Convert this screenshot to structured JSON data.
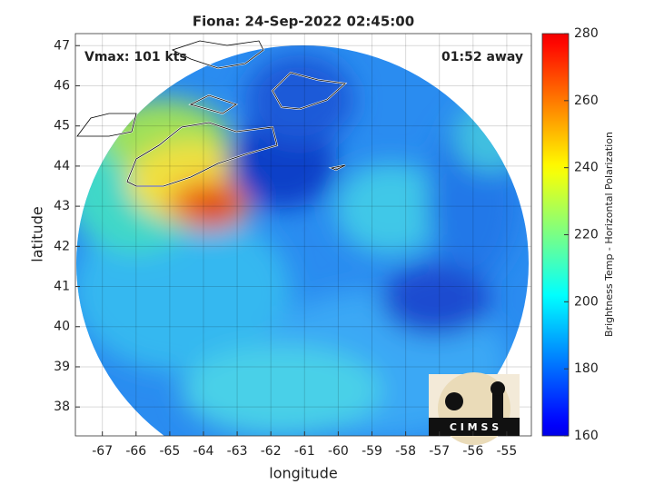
{
  "chart_data": {
    "type": "map",
    "title": "Fiona: 24-Sep-2022 02:45:00",
    "annotations": [
      "Vmax: 101 kts",
      "01:52 away"
    ],
    "xlabel": "longitude",
    "ylabel": "latitude",
    "xlim": [
      -67.8,
      -54.27
    ],
    "ylim": [
      37.28,
      47.3
    ],
    "xticks": [
      -67,
      -66,
      -65,
      -64,
      -63,
      -62,
      -61,
      -60,
      -59,
      -58,
      -57,
      -56,
      -55
    ],
    "yticks": [
      38,
      39,
      40,
      41,
      42,
      43,
      44,
      45,
      46,
      47
    ],
    "grid": true,
    "colorbar": {
      "label": "Brightness Temp - Horizontal Polarization",
      "lim": [
        160,
        280
      ],
      "ticks": [
        160,
        180,
        200,
        220,
        240,
        260,
        280
      ],
      "colormap": "jet"
    },
    "logo": "C I M S S"
  }
}
